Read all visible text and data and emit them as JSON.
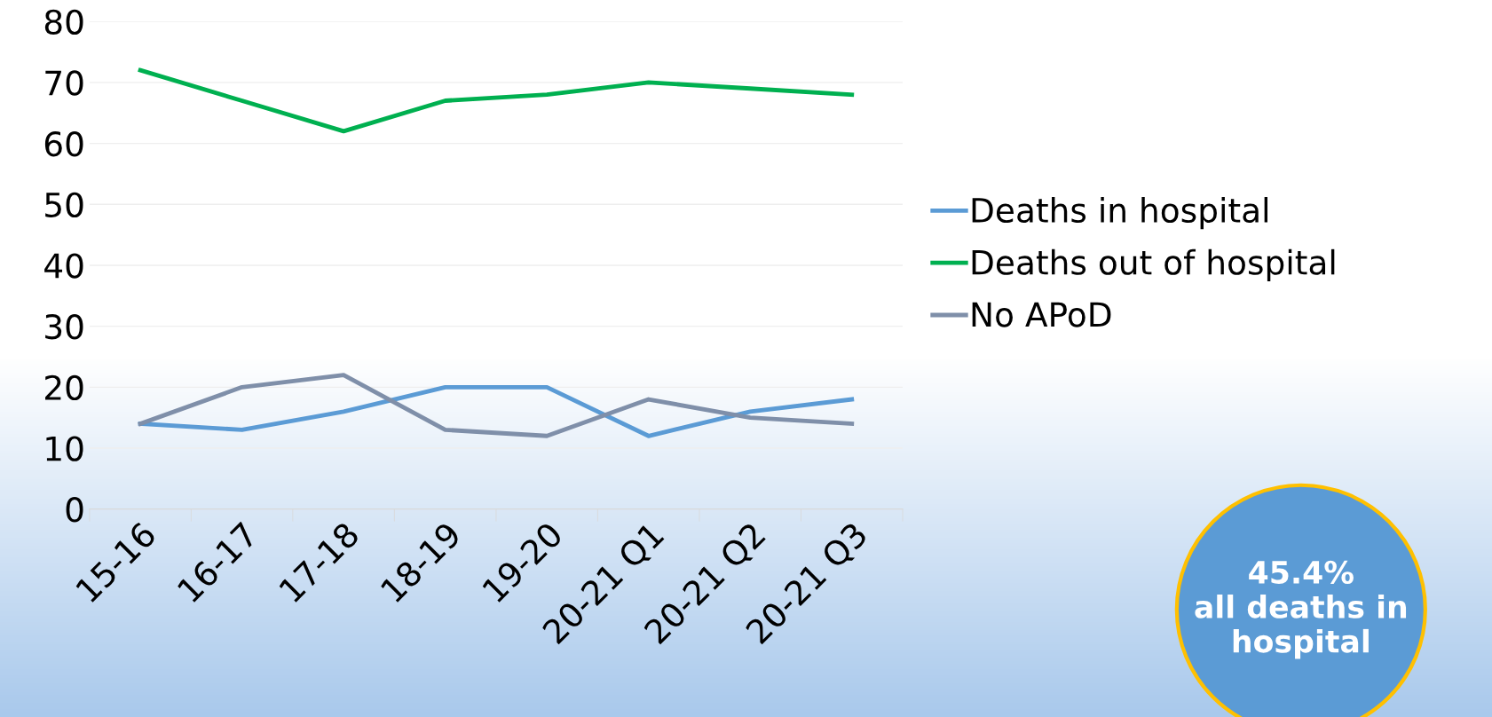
{
  "chart_data": {
    "type": "line",
    "categories": [
      "15-16",
      "16-17",
      "17-18",
      "18-19",
      "19-20",
      "20-21 Q1",
      "20-21 Q2",
      "20-21 Q3"
    ],
    "series": [
      {
        "name": "Deaths in hospital",
        "color": "#5b9bd5",
        "values": [
          14,
          13,
          16,
          20,
          20,
          12,
          16,
          18
        ]
      },
      {
        "name": "Deaths out of hospital",
        "color": "#00b050",
        "values": [
          72,
          67,
          62,
          67,
          68,
          70,
          69,
          68
        ]
      },
      {
        "name": "No APoD",
        "color": "#7f8fa9",
        "values": [
          14,
          20,
          22,
          13,
          12,
          18,
          15,
          14
        ]
      }
    ],
    "ylim": [
      0,
      80
    ],
    "yticks": [
      0,
      10,
      20,
      30,
      40,
      50,
      60,
      70,
      80
    ],
    "grid": "y",
    "legend": "right",
    "marker": "none",
    "line_style": "solid",
    "annotations": [
      "45.4%\nall deaths in\nhospital"
    ]
  }
}
